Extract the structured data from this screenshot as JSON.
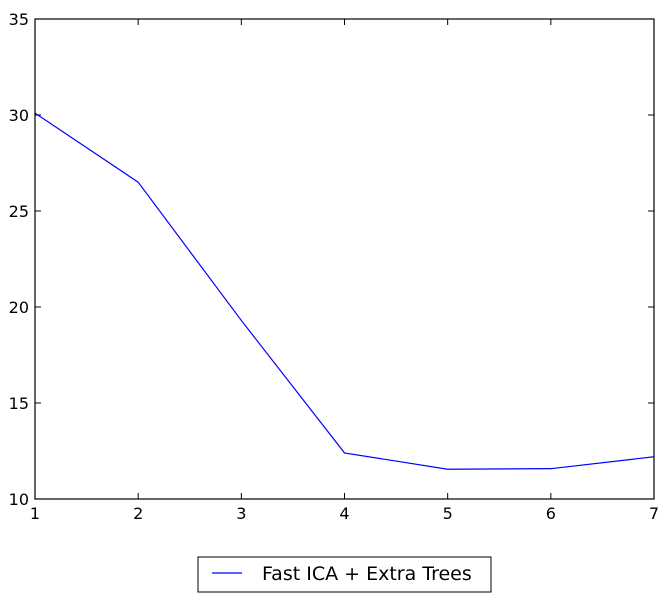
{
  "chart_data": {
    "type": "line",
    "title": "",
    "xlabel": "",
    "ylabel": "",
    "xlim": [
      1,
      7
    ],
    "ylim": [
      10,
      35
    ],
    "x_ticks": [
      1,
      2,
      3,
      4,
      5,
      6,
      7
    ],
    "y_ticks": [
      10,
      15,
      20,
      25,
      30,
      35
    ],
    "grid": false,
    "legend_position": "bottom-center, outside plot",
    "series": [
      {
        "name": "Fast ICA + Extra Trees",
        "color": "#0000ff",
        "x": [
          1,
          2,
          3,
          4,
          5,
          6,
          7
        ],
        "y": [
          30.1,
          26.5,
          19.3,
          12.4,
          11.55,
          11.58,
          12.2
        ]
      }
    ]
  }
}
